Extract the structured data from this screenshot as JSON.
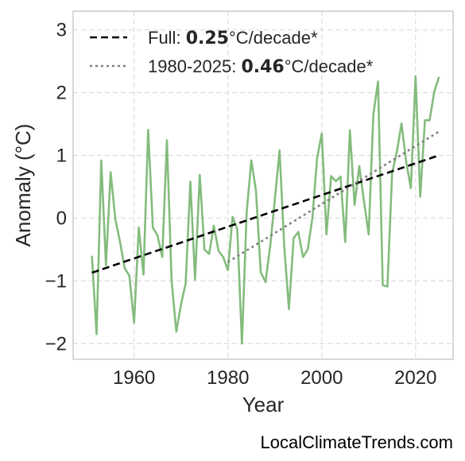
{
  "chart_data": {
    "type": "line",
    "title": "",
    "xlabel": "Year",
    "ylabel": "Anomaly (°C)",
    "xlim": [
      1947,
      2028
    ],
    "ylim": [
      -2.25,
      3.3
    ],
    "xticks": [
      1960,
      1980,
      2000,
      2020
    ],
    "yticks": [
      -2,
      -1,
      0,
      1,
      2,
      3
    ],
    "ytick_labels": [
      "−2",
      "−1",
      "0",
      "1",
      "2",
      "3"
    ],
    "grid": true,
    "legend_position": "top-left",
    "series": [
      {
        "style": "solid",
        "color": "#84bc7d",
        "x": [
          1951,
          1952,
          1953,
          1954,
          1955,
          1956,
          1957,
          1958,
          1959,
          1960,
          1961,
          1962,
          1963,
          1964,
          1965,
          1966,
          1967,
          1968,
          1969,
          1970,
          1971,
          1972,
          1973,
          1974,
          1975,
          1976,
          1977,
          1978,
          1979,
          1980,
          1981,
          1982,
          1983,
          1984,
          1985,
          1986,
          1987,
          1988,
          1989,
          1990,
          1991,
          1992,
          1993,
          1994,
          1995,
          1996,
          1997,
          1998,
          1999,
          2000,
          2001,
          2002,
          2003,
          2004,
          2005,
          2006,
          2007,
          2008,
          2009,
          2010,
          2011,
          2012,
          2013,
          2014,
          2015,
          2016,
          2017,
          2018,
          2019,
          2020,
          2021,
          2022,
          2023,
          2024,
          2025
        ],
        "y": [
          -0.6,
          -1.85,
          0.92,
          -0.75,
          0.73,
          -0.02,
          -0.38,
          -0.8,
          -0.92,
          -1.67,
          -0.15,
          -0.9,
          1.41,
          -0.15,
          -0.28,
          -0.62,
          1.24,
          -1.0,
          -1.81,
          -1.38,
          -1.04,
          0.58,
          -0.98,
          0.69,
          -0.5,
          -0.57,
          -0.12,
          -0.52,
          -0.62,
          -0.83,
          0.02,
          -0.18,
          -2.0,
          0.09,
          0.92,
          0.43,
          -0.86,
          -1.02,
          -0.45,
          0.3,
          1.08,
          -0.45,
          -1.45,
          -0.32,
          -0.22,
          -0.62,
          -0.5,
          0.0,
          0.95,
          1.35,
          -0.26,
          0.67,
          0.59,
          0.66,
          -0.38,
          1.4,
          0.21,
          0.83,
          0.27,
          -0.26,
          1.65,
          2.18,
          -1.07,
          -1.09,
          0.72,
          1.05,
          1.51,
          0.9,
          0.48,
          2.26,
          0.34,
          1.56,
          1.56,
          2.02,
          2.25
        ]
      },
      {
        "name": "Full",
        "style": "dashed",
        "color": "#000000",
        "x": [
          1951,
          2025
        ],
        "y": [
          -0.87,
          1.0
        ]
      },
      {
        "name": "1980-2025",
        "style": "dotted",
        "color": "#808080",
        "x": [
          1980,
          2025
        ],
        "y": [
          -0.7,
          1.38
        ]
      }
    ],
    "legend": [
      {
        "prefix": "Full: ",
        "value": "0.25",
        "suffix": "°C/decade*",
        "style": "dashed",
        "color": "#000000"
      },
      {
        "prefix": "1980-2025: ",
        "value": "0.46",
        "suffix": "°C/decade*",
        "style": "dotted",
        "color": "#808080"
      }
    ]
  },
  "source_label": "LocalClimateTrends.com"
}
